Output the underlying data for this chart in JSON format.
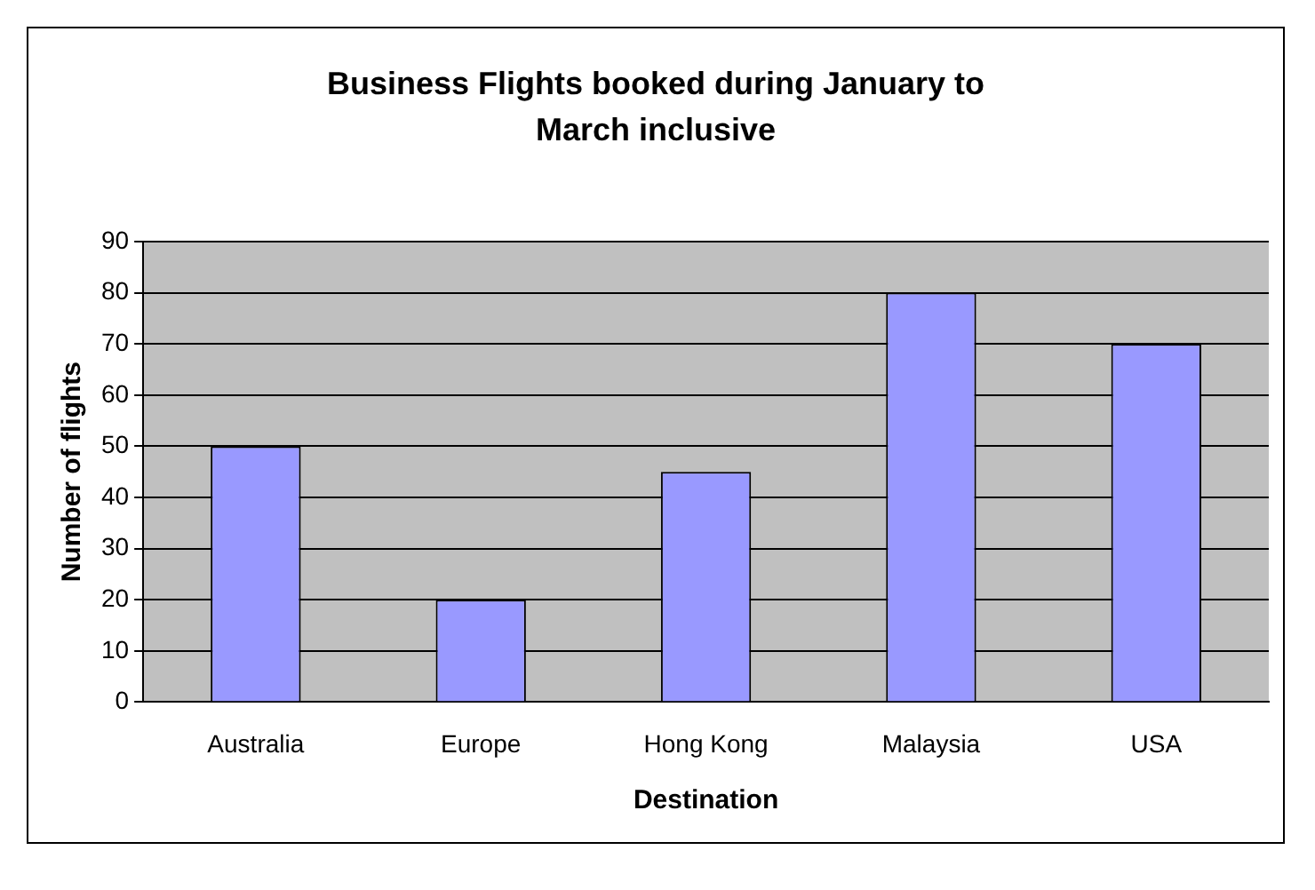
{
  "chart_data": {
    "type": "bar",
    "title": "Business Flights booked during January to March inclusive",
    "xlabel": "Destination",
    "ylabel": "Number of flights",
    "categories": [
      "Australia",
      "Europe",
      "Hong Kong",
      "Malaysia",
      "USA"
    ],
    "values": [
      50,
      20,
      45,
      80,
      70
    ],
    "color": "#9999ff",
    "ylim": [
      0,
      90
    ],
    "yticks": [
      0,
      10,
      20,
      30,
      40,
      50,
      60,
      70,
      80,
      90
    ],
    "grid": "y",
    "legend": false
  }
}
